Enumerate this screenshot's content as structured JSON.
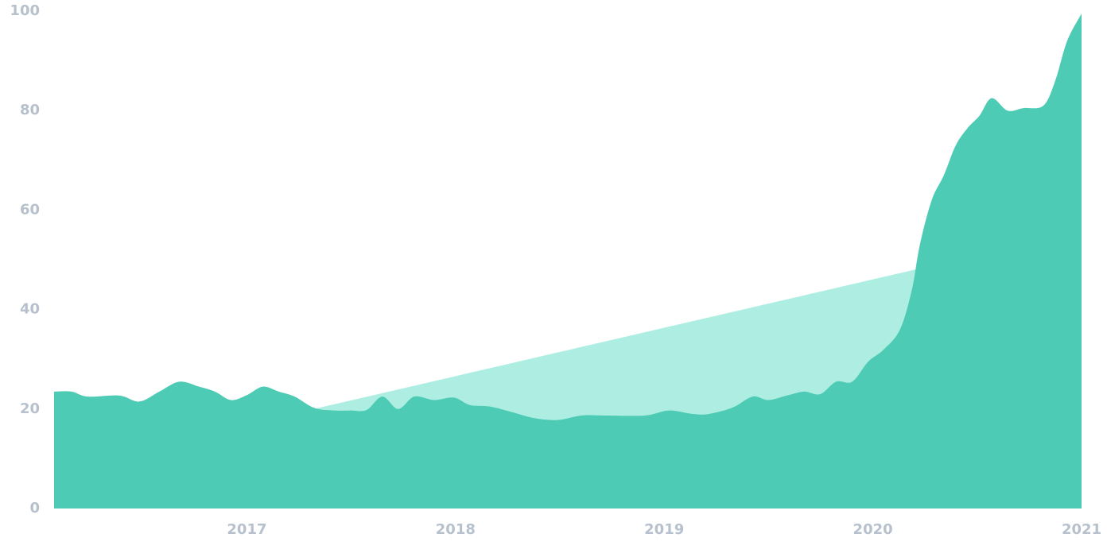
{
  "chart_data": {
    "type": "area",
    "xlim": [
      2016.076,
      2021.0
    ],
    "xticks": [
      2017,
      2018,
      2019,
      2020,
      2021
    ],
    "ylim": [
      0,
      100
    ],
    "yticks": [
      0,
      20,
      40,
      60,
      80,
      100
    ],
    "grid": false,
    "series": [
      {
        "color": "#aeeee2",
        "x": [
          2017.32,
          2020.25
        ],
        "values": [
          20,
          48.5
        ]
      },
      {
        "color": "#4ecbb4",
        "x": [
          2016.076,
          2016.16,
          2016.237,
          2016.389,
          2016.485,
          2016.58,
          2016.676,
          2016.771,
          2016.847,
          2016.924,
          2017.0,
          2017.076,
          2017.153,
          2017.229,
          2017.324,
          2017.42,
          2017.496,
          2017.573,
          2017.649,
          2017.725,
          2017.802,
          2017.897,
          2017.992,
          2018.069,
          2018.164,
          2018.26,
          2018.374,
          2018.489,
          2018.603,
          2018.718,
          2018.908,
          2019.023,
          2019.137,
          2019.214,
          2019.328,
          2019.424,
          2019.5,
          2019.595,
          2019.672,
          2019.748,
          2019.824,
          2019.901,
          2019.977,
          2020.053,
          2020.13,
          2020.187,
          2020.225,
          2020.282,
          2020.34,
          2020.397,
          2020.454,
          2020.511,
          2020.569,
          2020.645,
          2020.721,
          2020.817,
          2020.874,
          2020.931,
          2021.0
        ],
        "values": [
          23.5,
          23.5,
          22.5,
          22.7,
          21.5,
          23.5,
          25.5,
          24.5,
          23.5,
          21.8,
          22.8,
          24.5,
          23.5,
          22.5,
          20.2,
          19.7,
          19.7,
          19.8,
          22.5,
          20,
          22.5,
          21.8,
          22.3,
          20.8,
          20.5,
          19.5,
          18.2,
          17.8,
          18.7,
          18.7,
          18.7,
          19.7,
          19.0,
          19.0,
          20.3,
          22.5,
          21.8,
          22.8,
          23.5,
          23.0,
          25.5,
          25.5,
          29.5,
          32,
          36,
          44,
          53,
          62,
          67,
          73,
          76.5,
          79,
          82.5,
          80,
          80.5,
          81,
          86,
          94,
          99.5
        ]
      }
    ]
  }
}
